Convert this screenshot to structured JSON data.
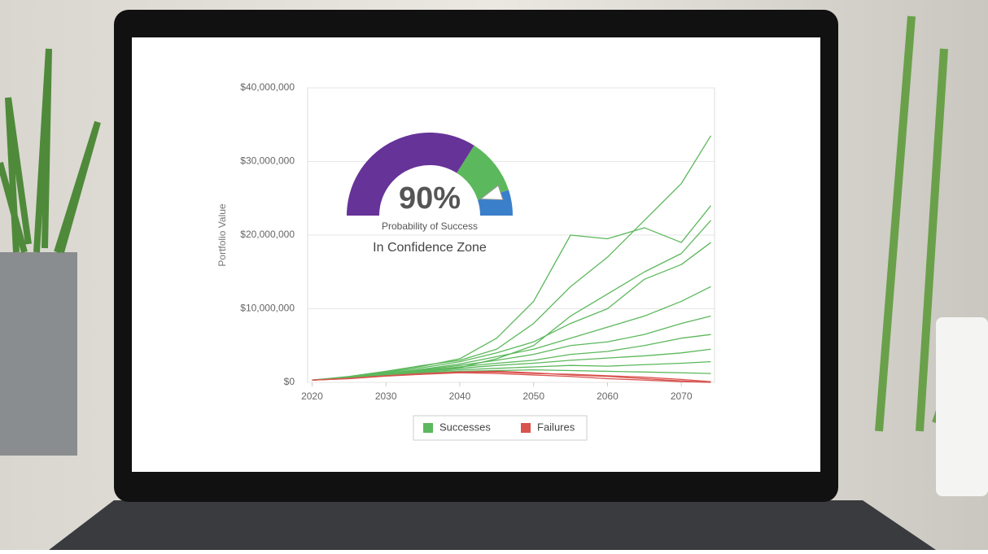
{
  "chart_data": {
    "type": "line",
    "y_label": "Portfolio Value",
    "x": [
      2020,
      2025,
      2030,
      2035,
      2040,
      2045,
      2050,
      2055,
      2060,
      2065,
      2070,
      2074
    ],
    "xlim": [
      2019.4,
      2074.5
    ],
    "xticks": [
      2020,
      2030,
      2040,
      2050,
      2060,
      2070
    ],
    "ylim": [
      0,
      40000000
    ],
    "yticks": [
      {
        "value": 0,
        "label": "$0"
      },
      {
        "value": 10000000,
        "label": "$10,000,000"
      },
      {
        "value": 20000000,
        "label": "$20,000,000"
      },
      {
        "value": 30000000,
        "label": "$30,000,000"
      },
      {
        "value": 40000000,
        "label": "$40,000,000"
      }
    ],
    "grid": true,
    "series": [
      {
        "name": "Successes",
        "color": "#5cb85c",
        "lines": [
          [
            300000,
            800000,
            1500000,
            2300000,
            3000000,
            4500000,
            8000000,
            13000000,
            17000000,
            22000000,
            27000000,
            33500000
          ],
          [
            300000,
            750000,
            1400000,
            2200000,
            3200000,
            6000000,
            11000000,
            20000000,
            19500000,
            21000000,
            19000000,
            24000000
          ],
          [
            300000,
            700000,
            1300000,
            2000000,
            2800000,
            4000000,
            5500000,
            8000000,
            10000000,
            14000000,
            16000000,
            19000000
          ],
          [
            300000,
            700000,
            1200000,
            1800000,
            2500000,
            3500000,
            4500000,
            6000000,
            7500000,
            9000000,
            11000000,
            13000000
          ],
          [
            300000,
            650000,
            1100000,
            1700000,
            2300000,
            3000000,
            3800000,
            5000000,
            5500000,
            6500000,
            8000000,
            9000000
          ],
          [
            300000,
            650000,
            1100000,
            1600000,
            2100000,
            2600000,
            3000000,
            3800000,
            4200000,
            5000000,
            6000000,
            6500000
          ],
          [
            300000,
            600000,
            1000000,
            1500000,
            1900000,
            2300000,
            2600000,
            3000000,
            3300000,
            3600000,
            4000000,
            4500000
          ],
          [
            300000,
            600000,
            1000000,
            1400000,
            1700000,
            1900000,
            2100000,
            2300000,
            2200000,
            2400000,
            2600000,
            2800000
          ],
          [
            300000,
            620000,
            1050000,
            1550000,
            2000000,
            3200000,
            5000000,
            9000000,
            12000000,
            15000000,
            17500000,
            22000000
          ],
          [
            300000,
            600000,
            950000,
            1300000,
            1500000,
            1600000,
            1700000,
            1600000,
            1500000,
            1400000,
            1300000,
            1200000
          ]
        ]
      },
      {
        "name": "Failures",
        "color": "#d9534f",
        "lines": [
          [
            300000,
            550000,
            900000,
            1200000,
            1400000,
            1500000,
            1300000,
            1000000,
            800000,
            500000,
            200000,
            0
          ],
          [
            300000,
            500000,
            850000,
            1100000,
            1300000,
            1200000,
            1000000,
            800000,
            500000,
            300000,
            100000,
            0
          ],
          [
            300000,
            520000,
            880000,
            1150000,
            1350000,
            1400000,
            1200000,
            1100000,
            900000,
            700000,
            400000,
            100000
          ]
        ]
      }
    ],
    "gauge": {
      "value": 90,
      "label": "90%",
      "range": [
        0,
        100
      ],
      "caption": "Probability of Success",
      "status": "In Confidence Zone",
      "zones": [
        {
          "to": 68,
          "color": "#663399"
        },
        {
          "to": 90,
          "color": "#5cb85c"
        },
        {
          "to": 100,
          "color": "#3a7fc9"
        }
      ]
    }
  }
}
